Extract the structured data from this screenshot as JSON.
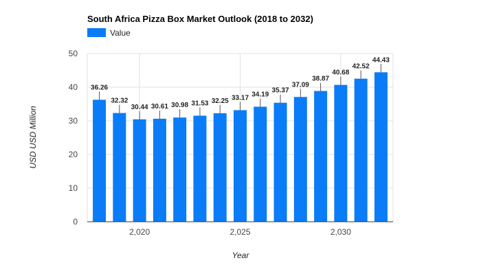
{
  "chart_data": {
    "type": "bar",
    "title": "South Africa Pizza Box Market Outlook (2018 to 2032)",
    "xlabel": "Year",
    "ylabel": "USD USD Million",
    "legend": {
      "label": "Value",
      "position": "top-left"
    },
    "x": [
      2018,
      2019,
      2020,
      2021,
      2022,
      2023,
      2024,
      2025,
      2026,
      2027,
      2028,
      2029,
      2030,
      2031,
      2032
    ],
    "values": [
      36.26,
      32.32,
      30.44,
      30.61,
      30.98,
      31.53,
      32.25,
      33.17,
      34.19,
      35.37,
      37.09,
      38.87,
      40.68,
      42.52,
      44.43
    ],
    "value_labels": [
      "36.26",
      "32.32",
      "30.44",
      "30.61",
      "30.98",
      "31.53",
      "32.25",
      "33.17",
      "34.19",
      "35.37",
      "37.09",
      "38.87",
      "40.68",
      "42.52",
      "44.43"
    ],
    "xticks": [
      {
        "value": 2020,
        "label": "2,020"
      },
      {
        "value": 2025,
        "label": "2,025"
      },
      {
        "value": 2030,
        "label": "2,030"
      }
    ],
    "xlim": [
      2017.4,
      2032.6
    ],
    "ylim": [
      0,
      50
    ],
    "yticks": [
      0,
      10,
      20,
      30,
      40,
      50
    ],
    "ytick_labels": [
      "0",
      "10",
      "20",
      "30",
      "40",
      "50"
    ],
    "grid": true,
    "bar_color": "#0a7cf7",
    "gridline_color": "#e0e0e0",
    "axis_color": "#333333"
  }
}
